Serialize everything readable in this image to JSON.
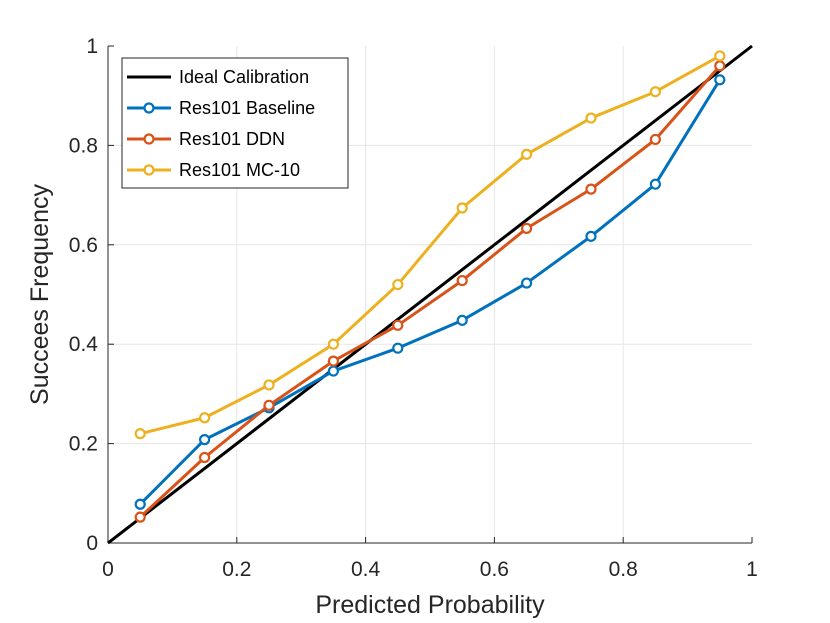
{
  "chart_data": {
    "type": "line",
    "title": "",
    "xlabel": "Predicted Probability",
    "ylabel": "Succees Frequency",
    "xlim": [
      0,
      1
    ],
    "ylim": [
      0,
      1
    ],
    "grid": true,
    "legend_position": "top-left",
    "xticks": [
      0,
      0.2,
      0.4,
      0.6,
      0.8,
      1
    ],
    "yticks": [
      0,
      0.2,
      0.4,
      0.6,
      0.8,
      1
    ],
    "xtick_labels": [
      "0",
      "0.2",
      "0.4",
      "0.6",
      "0.8",
      "1"
    ],
    "ytick_labels": [
      "0",
      "0.2",
      "0.4",
      "0.6",
      "0.8",
      "1"
    ],
    "x": [
      0.05,
      0.15,
      0.25,
      0.35,
      0.45,
      0.55,
      0.65,
      0.75,
      0.85,
      0.95
    ],
    "ideal": {
      "name": "Ideal Calibration",
      "color": "#000000",
      "x": [
        0,
        1
      ],
      "values": [
        0,
        1
      ]
    },
    "series": [
      {
        "name": "Res101 Baseline",
        "color": "#0072BD",
        "values": [
          0.078,
          0.208,
          0.272,
          0.346,
          0.392,
          0.448,
          0.523,
          0.617,
          0.722,
          0.932
        ]
      },
      {
        "name": "Res101 DDN",
        "color": "#D95319",
        "values": [
          0.052,
          0.172,
          0.277,
          0.366,
          0.438,
          0.528,
          0.633,
          0.712,
          0.812,
          0.96
        ]
      },
      {
        "name": "Res101 MC-10",
        "color": "#EDB120",
        "values": [
          0.22,
          0.252,
          0.318,
          0.4,
          0.52,
          0.674,
          0.782,
          0.855,
          0.908,
          0.98
        ]
      }
    ]
  }
}
